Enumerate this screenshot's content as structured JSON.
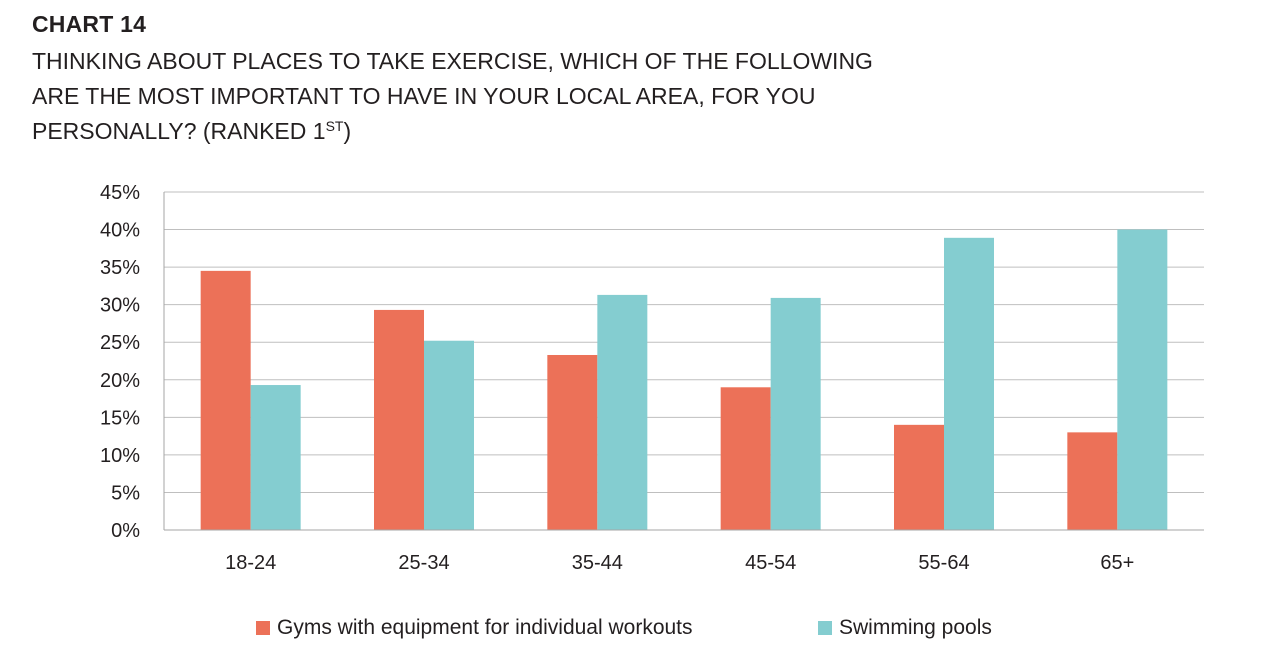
{
  "header": {
    "chart_label": "CHART 14",
    "title_line1": "THINKING ABOUT PLACES TO TAKE EXERCISE, WHICH OF THE FOLLOWING",
    "title_line2": "ARE THE MOST IMPORTANT TO HAVE IN YOUR LOCAL AREA, FOR YOU",
    "title_line3": "PERSONALLY? (RANKED 1",
    "title_sup": "ST",
    "title_end": ")"
  },
  "chart_data": {
    "type": "bar",
    "categories": [
      "18-24",
      "25-34",
      "35-44",
      "45-54",
      "55-64",
      "65+"
    ],
    "series": [
      {
        "name": "Gyms with equipment for individual workouts",
        "color": "#ec7158",
        "values": [
          34.5,
          29.3,
          23.3,
          19.0,
          14.0,
          13.0
        ]
      },
      {
        "name": "Swimming pools",
        "color": "#84cdd0",
        "values": [
          19.3,
          25.2,
          31.3,
          30.9,
          38.9,
          40.0
        ]
      }
    ],
    "ylim": [
      0,
      45
    ],
    "yticks": [
      0,
      5,
      10,
      15,
      20,
      25,
      30,
      35,
      40,
      45
    ],
    "ytick_labels": [
      "0%",
      "5%",
      "10%",
      "15%",
      "20%",
      "25%",
      "30%",
      "35%",
      "40%",
      "45%"
    ],
    "grid": true,
    "legend_position": "bottom"
  }
}
